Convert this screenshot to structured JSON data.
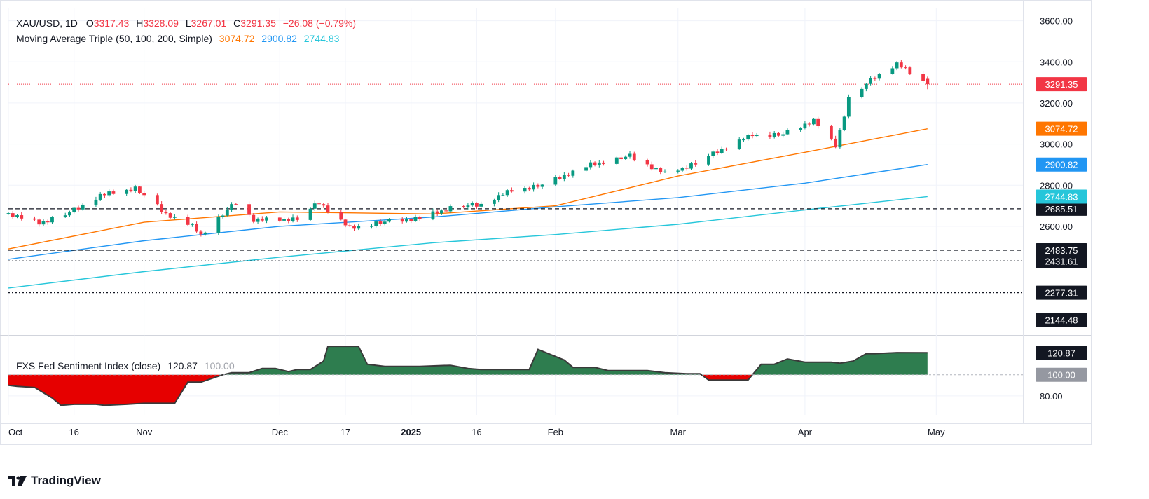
{
  "header": {
    "symbol": "XAU/USD, 1D",
    "ohlc": {
      "o_label": "O",
      "o": "3317.43",
      "h_label": "H",
      "h": "3328.09",
      "l_label": "L",
      "l": "3267.01",
      "c_label": "C",
      "c": "3291.35",
      "change": "−26.08 (−0.79%)"
    },
    "ma_label": "Moving Average Triple (50, 100, 200, Simple)",
    "ma_values": [
      "3074.72",
      "2900.82",
      "2744.83"
    ]
  },
  "indicator": {
    "label": "FXS Fed Sentiment Index (close)",
    "value": "120.87",
    "baseline": "100.00"
  },
  "brand": {
    "name": "TradingView"
  },
  "colors": {
    "up": "#089981",
    "down": "#f23645",
    "ma50": "#ff7600",
    "ma100": "#2196f3",
    "ma200": "#26c6da",
    "fill_pos": "#2e7d4f",
    "fill_neg": "#e60000"
  },
  "chart_data": {
    "type": "candlestick",
    "ylim": [
      2085,
      3660
    ],
    "y_ticks": [
      "3600.00",
      "3400.00",
      "3200.00",
      "3000.00",
      "2800.00",
      "2600.00"
    ],
    "x_ticks": [
      {
        "label": "Oct",
        "date": "2024-10-01"
      },
      {
        "label": "16",
        "date": "2024-10-16"
      },
      {
        "label": "Nov",
        "date": "2024-11-01"
      },
      {
        "label": "Dec",
        "date": "2024-12-02"
      },
      {
        "label": "17",
        "date": "2024-12-17"
      },
      {
        "label": "2025",
        "date": "2025-01-01",
        "bold": true
      },
      {
        "label": "16",
        "date": "2025-01-16"
      },
      {
        "label": "Feb",
        "date": "2025-02-03"
      },
      {
        "label": "Mar",
        "date": "2025-03-03"
      },
      {
        "label": "Apr",
        "date": "2025-04-01"
      },
      {
        "label": "May",
        "date": "2025-05-01"
      }
    ],
    "x_range": [
      "2024-10-01",
      "2025-05-20"
    ],
    "last_date": "2025-04-29",
    "close_path": [
      [
        "2024-10-01",
        2660
      ],
      [
        "2024-10-08",
        2615
      ],
      [
        "2024-10-15",
        2665
      ],
      [
        "2024-10-22",
        2750
      ],
      [
        "2024-10-30",
        2785
      ],
      [
        "2024-11-06",
        2660
      ],
      [
        "2024-11-12",
        2600
      ],
      [
        "2024-11-14",
        2560
      ],
      [
        "2024-11-22",
        2715
      ],
      [
        "2024-11-26",
        2630
      ],
      [
        "2024-12-06",
        2635
      ],
      [
        "2024-12-11",
        2715
      ],
      [
        "2024-12-18",
        2590
      ],
      [
        "2024-12-24",
        2615
      ],
      [
        "2025-01-03",
        2640
      ],
      [
        "2025-01-10",
        2690
      ],
      [
        "2025-01-17",
        2705
      ],
      [
        "2025-01-24",
        2775
      ],
      [
        "2025-01-31",
        2800
      ],
      [
        "2025-02-11",
        2900
      ],
      [
        "2025-02-20",
        2940
      ],
      [
        "2025-02-28",
        2855
      ],
      [
        "2025-03-07",
        2905
      ],
      [
        "2025-03-14",
        2985
      ],
      [
        "2025-03-20",
        3045
      ],
      [
        "2025-03-27",
        3045
      ],
      [
        "2025-04-03",
        3115
      ],
      [
        "2025-04-08",
        2990
      ],
      [
        "2025-04-11",
        3220
      ],
      [
        "2025-04-17",
        3325
      ],
      [
        "2025-04-22",
        3390
      ],
      [
        "2025-04-29",
        3291.35
      ]
    ],
    "vol_pattern": [
      0.3,
      -0.6,
      0.5,
      -0.2,
      0.8,
      -0.4,
      0.1,
      -0.7,
      0.6,
      -0.3,
      0.2,
      0.9,
      -0.5
    ],
    "last_candle": {
      "open": 3317.43,
      "high": 3328.09,
      "low": 3267.01,
      "close": 3291.35
    },
    "last_price_tag": "3291.35",
    "ma_series": [
      {
        "name": "MA 50",
        "color": "#ff7600",
        "tag": "3074.72",
        "points": [
          [
            "2024-10-01",
            2490
          ],
          [
            "2024-11-01",
            2620
          ],
          [
            "2024-12-02",
            2670
          ],
          [
            "2025-01-06",
            2660
          ],
          [
            "2025-02-03",
            2700
          ],
          [
            "2025-03-03",
            2845
          ],
          [
            "2025-04-01",
            2960
          ],
          [
            "2025-04-29",
            3074.72
          ]
        ]
      },
      {
        "name": "MA 100",
        "color": "#2196f3",
        "tag": "2900.82",
        "points": [
          [
            "2024-10-01",
            2440
          ],
          [
            "2024-11-01",
            2530
          ],
          [
            "2024-12-02",
            2600
          ],
          [
            "2025-01-06",
            2645
          ],
          [
            "2025-02-03",
            2695
          ],
          [
            "2025-03-03",
            2740
          ],
          [
            "2025-04-01",
            2810
          ],
          [
            "2025-04-29",
            2900.82
          ]
        ]
      },
      {
        "name": "MA 200",
        "color": "#26c6da",
        "tag": "2744.83",
        "points": [
          [
            "2024-10-01",
            2300
          ],
          [
            "2024-11-01",
            2380
          ],
          [
            "2024-12-02",
            2450
          ],
          [
            "2025-01-06",
            2520
          ],
          [
            "2025-02-03",
            2560
          ],
          [
            "2025-03-03",
            2610
          ],
          [
            "2025-04-01",
            2680
          ],
          [
            "2025-04-29",
            2744.83
          ]
        ]
      }
    ],
    "h_levels": [
      {
        "value": 2685.51,
        "label": "2685.51",
        "style": "dashed"
      },
      {
        "value": 2483.75,
        "label": "2483.75",
        "style": "dashed"
      },
      {
        "value": 2431.61,
        "label": "2431.61",
        "style": "dotted"
      },
      {
        "value": 2277.31,
        "label": "2277.31",
        "style": "dotted"
      },
      {
        "value": 2144.48,
        "label": "2144.48",
        "style": "none"
      }
    ],
    "sentiment": {
      "ylim": [
        62,
        135
      ],
      "y_ticks": [
        "80.00"
      ],
      "baseline": 100,
      "last": "120.87",
      "points": [
        [
          "2024-10-01",
          90
        ],
        [
          "2024-10-03",
          89
        ],
        [
          "2024-10-07",
          88
        ],
        [
          "2024-10-09",
          83
        ],
        [
          "2024-10-11",
          78
        ],
        [
          "2024-10-13",
          71
        ],
        [
          "2024-10-16",
          72
        ],
        [
          "2024-10-21",
          72
        ],
        [
          "2024-10-23",
          71
        ],
        [
          "2024-10-28",
          72
        ],
        [
          "2024-11-01",
          73
        ],
        [
          "2024-11-04",
          73
        ],
        [
          "2024-11-08",
          73
        ],
        [
          "2024-11-11",
          93
        ],
        [
          "2024-11-14",
          93
        ],
        [
          "2024-11-19",
          100
        ],
        [
          "2024-11-21",
          102
        ],
        [
          "2024-11-25",
          102
        ],
        [
          "2024-11-28",
          106
        ],
        [
          "2024-12-01",
          106
        ],
        [
          "2024-12-04",
          103
        ],
        [
          "2024-12-06",
          105
        ],
        [
          "2024-12-09",
          105
        ],
        [
          "2024-12-12",
          113
        ],
        [
          "2024-12-13",
          127
        ],
        [
          "2024-12-16",
          127
        ],
        [
          "2024-12-20",
          127
        ],
        [
          "2024-12-22",
          110
        ],
        [
          "2024-12-26",
          108
        ],
        [
          "2025-01-03",
          108
        ],
        [
          "2025-01-10",
          109
        ],
        [
          "2025-01-14",
          106
        ],
        [
          "2025-01-17",
          105
        ],
        [
          "2025-01-22",
          105
        ],
        [
          "2025-01-28",
          105
        ],
        [
          "2025-01-30",
          124
        ],
        [
          "2025-02-05",
          114
        ],
        [
          "2025-02-07",
          107
        ],
        [
          "2025-02-12",
          107
        ],
        [
          "2025-02-15",
          104
        ],
        [
          "2025-02-24",
          104
        ],
        [
          "2025-02-28",
          102
        ],
        [
          "2025-03-05",
          101
        ],
        [
          "2025-03-08",
          101
        ],
        [
          "2025-03-10",
          95
        ],
        [
          "2025-03-19",
          95
        ],
        [
          "2025-03-22",
          110
        ],
        [
          "2025-03-25",
          110
        ],
        [
          "2025-03-28",
          115
        ],
        [
          "2025-04-01",
          112
        ],
        [
          "2025-04-07",
          112
        ],
        [
          "2025-04-09",
          111
        ],
        [
          "2025-04-12",
          113
        ],
        [
          "2025-04-15",
          120
        ],
        [
          "2025-04-17",
          120
        ],
        [
          "2025-04-22",
          121
        ],
        [
          "2025-04-29",
          120.87
        ]
      ]
    }
  }
}
